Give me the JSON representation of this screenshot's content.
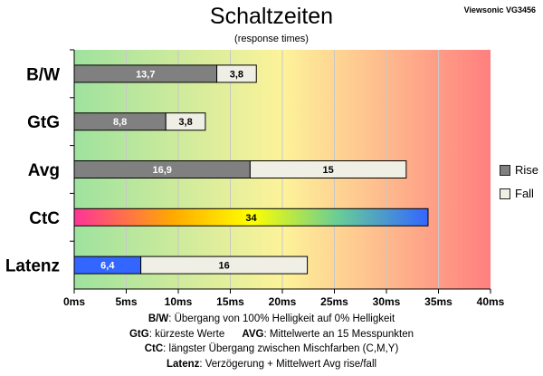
{
  "header": {
    "title": "Schaltzeiten",
    "subtitle": "(response times)",
    "model": "Viewsonic VG3456"
  },
  "legend": {
    "rise_label": "Rise",
    "fall_label": "Fall"
  },
  "colors": {
    "rise": "#808080",
    "fall": "#f0efe6",
    "latency_rise": "#3366ff",
    "background_gradient": [
      "#9ee29e",
      "#fdf39a",
      "#ff7f7f"
    ],
    "ctc_gradient": [
      "#ff3399",
      "#ffaa00",
      "#ffff00",
      "#66cc99",
      "#3366ff"
    ]
  },
  "chart_data": {
    "type": "bar",
    "orientation": "horizontal",
    "stacked": true,
    "categories": [
      "B/W",
      "GtG",
      "Avg",
      "CtC",
      "Latenz"
    ],
    "series": [
      {
        "name": "Rise",
        "values": [
          13.7,
          8.8,
          16.9,
          34,
          6.4
        ]
      },
      {
        "name": "Fall",
        "values": [
          3.8,
          3.8,
          15,
          null,
          16
        ]
      }
    ],
    "data_labels": {
      "rise": [
        "13,7",
        "8,8",
        "16,9",
        "34",
        "6,4"
      ],
      "fall": [
        "3,8",
        "3,8",
        "15",
        "",
        "16"
      ]
    },
    "unit": "ms",
    "xlim": [
      0,
      40
    ],
    "x_ticks": [
      0,
      5,
      10,
      15,
      20,
      25,
      30,
      35,
      40
    ],
    "x_tick_labels": [
      "0ms",
      "5ms",
      "10ms",
      "15ms",
      "20ms",
      "25ms",
      "30ms",
      "35ms",
      "40ms"
    ],
    "legend_position": "right"
  },
  "footnotes": {
    "line1": {
      "label": "B/W",
      "text": ":  Übergang von 100% Helligkeit auf 0% Helligkeit"
    },
    "line2a": {
      "label": "GtG",
      "text": ": kürzeste  Werte"
    },
    "line2b": {
      "label": "AVG",
      "text": ": Mittelwerte  an 15 Messpunkten"
    },
    "line3": {
      "label": "CtC",
      "text": ": längster Übergang  zwischen Mischfarben  (C,M,Y)"
    },
    "line4": {
      "label": "Latenz",
      "text": ": Verzögerung  + Mittelwert  Avg rise/fall"
    }
  }
}
